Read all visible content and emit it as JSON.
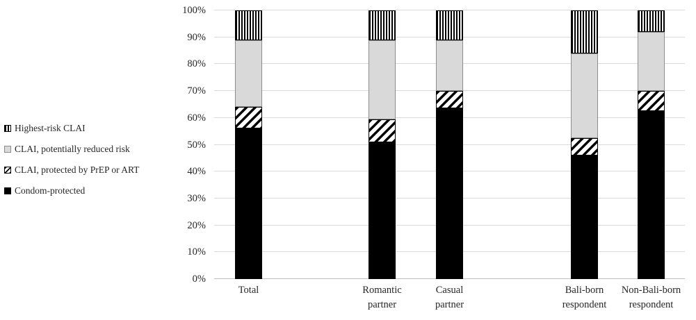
{
  "chart_data": {
    "type": "bar",
    "subtype": "stacked-100-percent",
    "title": "",
    "xlabel": "",
    "ylabel": "",
    "unit": "%",
    "categories": [
      "Total",
      "Romantic partner",
      "Casual partner",
      "Bali-born respondent",
      "Non-Bali-born respondent"
    ],
    "category_label_lines": [
      [
        "Total"
      ],
      [
        "Romantic",
        "partner"
      ],
      [
        "Casual",
        "partner"
      ],
      [
        "Bali-born",
        "respondent"
      ],
      [
        "Non-Bali-born",
        "respondent"
      ]
    ],
    "series": [
      {
        "name": "Condom-protected",
        "pattern": "solid-black",
        "values": [
          56,
          51,
          63.5,
          46,
          62.5
        ]
      },
      {
        "name": "CLAI, protected by PrEP or ART",
        "pattern": "diagonal-stripes",
        "values": [
          8,
          8.5,
          6.5,
          6.5,
          7.5
        ]
      },
      {
        "name": "CLAI, potentially reduced risk",
        "pattern": "light-gray",
        "values": [
          25,
          29.5,
          19,
          31.5,
          22
        ]
      },
      {
        "name": "Highest-risk CLAI",
        "pattern": "vertical-stripes",
        "values": [
          11,
          11,
          11,
          16,
          8
        ]
      }
    ],
    "y_axis": {
      "min": 0,
      "max": 100,
      "tick_step": 10,
      "tick_labels": [
        "0%",
        "10%",
        "20%",
        "30%",
        "40%",
        "50%",
        "60%",
        "70%",
        "80%",
        "90%",
        "100%"
      ],
      "grid": true
    },
    "legend": {
      "position": "left",
      "entries_top_to_bottom": [
        "Highest-risk CLAI",
        "CLAI, potentially reduced risk",
        "CLAI, protected by PrEP or ART",
        "Condom-protected"
      ]
    }
  },
  "colors": {
    "background": "#ffffff",
    "bar_black": "#000000",
    "bar_light_gray": "#d9d9d9",
    "gray_segment_border": "#8c8c8c",
    "gridline": "#d9d9d9",
    "axis_line": "#bfbfbf",
    "text": "#262626"
  }
}
